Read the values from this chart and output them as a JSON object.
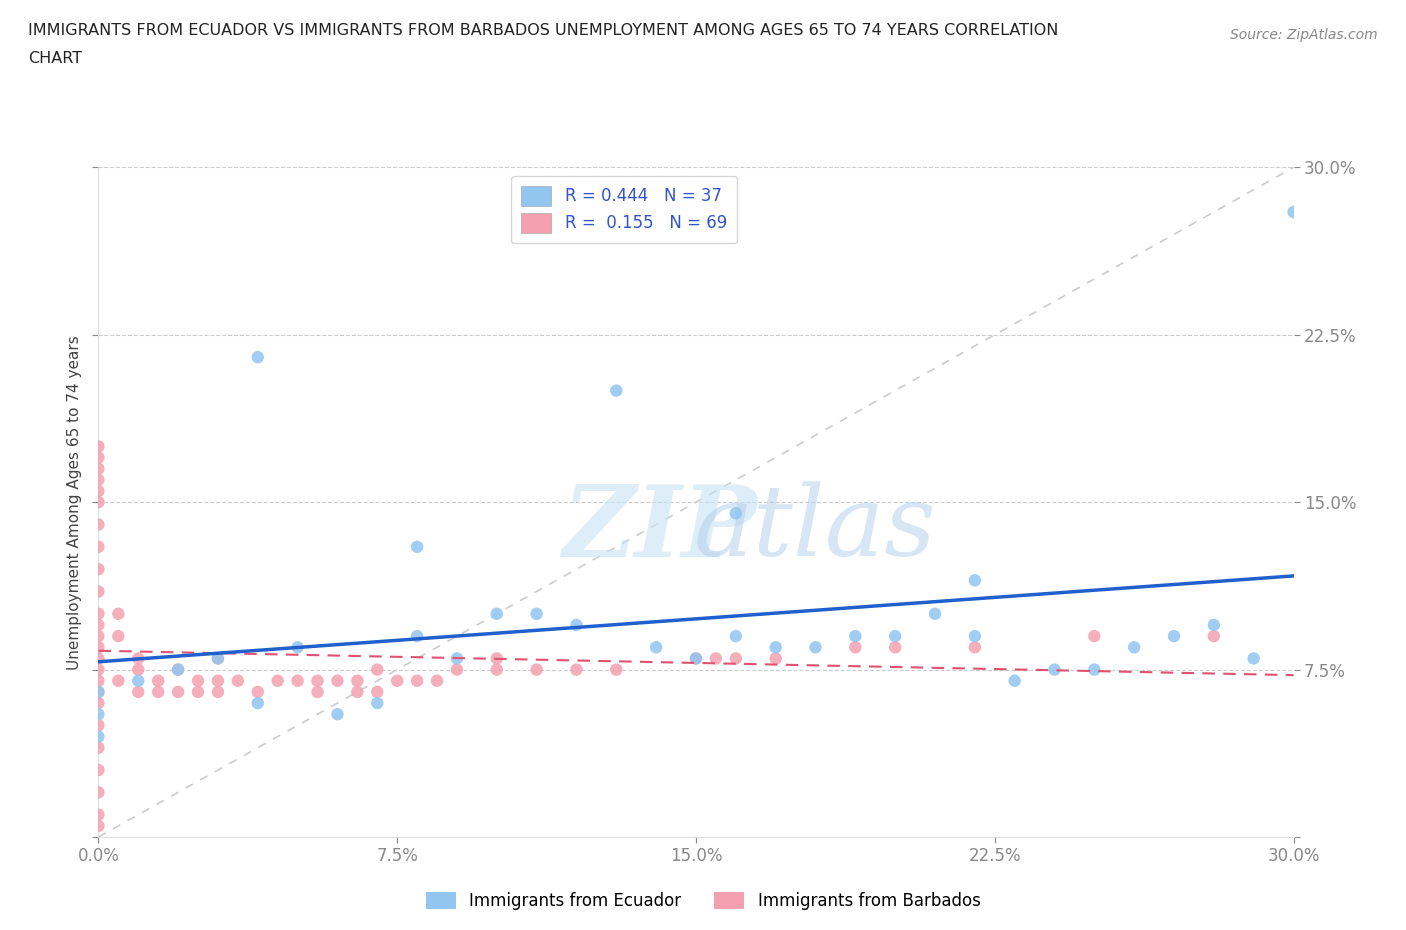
{
  "title_line1": "IMMIGRANTS FROM ECUADOR VS IMMIGRANTS FROM BARBADOS UNEMPLOYMENT AMONG AGES 65 TO 74 YEARS CORRELATION",
  "title_line2": "CHART",
  "source": "Source: ZipAtlas.com",
  "ylabel": "Unemployment Among Ages 65 to 74 years",
  "xlim": [
    0.0,
    0.3
  ],
  "ylim": [
    0.0,
    0.3
  ],
  "xtick_labels": [
    "0.0%",
    "7.5%",
    "15.0%",
    "22.5%",
    "30.0%"
  ],
  "xtick_vals": [
    0.0,
    0.075,
    0.15,
    0.225,
    0.3
  ],
  "ytick_labels": [
    "",
    "7.5%",
    "15.0%",
    "22.5%",
    "30.0%"
  ],
  "ytick_vals": [
    0.0,
    0.075,
    0.15,
    0.225,
    0.3
  ],
  "ecuador_color": "#92C5F0",
  "barbados_color": "#F4A0B0",
  "trendline_ecuador_color": "#2060CC",
  "trendline_barbados_color": "#E05070",
  "diag_line_color": "#CCCCCC",
  "R_ecuador": 0.444,
  "N_ecuador": 37,
  "R_barbados": 0.155,
  "N_barbados": 69,
  "ecuador_x": [
    0.0,
    0.0,
    0.0,
    0.01,
    0.02,
    0.03,
    0.04,
    0.05,
    0.06,
    0.07,
    0.08,
    0.09,
    0.1,
    0.11,
    0.12,
    0.13,
    0.14,
    0.15,
    0.16,
    0.17,
    0.18,
    0.19,
    0.2,
    0.21,
    0.22,
    0.23,
    0.24,
    0.25,
    0.26,
    0.27,
    0.28,
    0.29,
    0.3,
    0.16,
    0.22,
    0.08,
    0.04
  ],
  "ecuador_y": [
    0.065,
    0.055,
    0.045,
    0.07,
    0.075,
    0.08,
    0.06,
    0.085,
    0.055,
    0.06,
    0.09,
    0.08,
    0.1,
    0.1,
    0.095,
    0.2,
    0.085,
    0.08,
    0.09,
    0.085,
    0.085,
    0.09,
    0.09,
    0.1,
    0.09,
    0.07,
    0.075,
    0.075,
    0.085,
    0.09,
    0.095,
    0.08,
    0.28,
    0.145,
    0.115,
    0.13,
    0.215
  ],
  "barbados_x": [
    0.0,
    0.0,
    0.0,
    0.0,
    0.0,
    0.0,
    0.0,
    0.0,
    0.0,
    0.0,
    0.0,
    0.0,
    0.0,
    0.0,
    0.0,
    0.0,
    0.0,
    0.0,
    0.0,
    0.0,
    0.0,
    0.0,
    0.0,
    0.0,
    0.0,
    0.005,
    0.005,
    0.005,
    0.01,
    0.01,
    0.01,
    0.015,
    0.015,
    0.02,
    0.02,
    0.025,
    0.025,
    0.03,
    0.03,
    0.03,
    0.035,
    0.04,
    0.045,
    0.05,
    0.055,
    0.055,
    0.06,
    0.065,
    0.065,
    0.07,
    0.07,
    0.075,
    0.08,
    0.085,
    0.09,
    0.1,
    0.1,
    0.11,
    0.12,
    0.13,
    0.15,
    0.155,
    0.16,
    0.17,
    0.19,
    0.2,
    0.22,
    0.25,
    0.28
  ],
  "barbados_y": [
    0.005,
    0.01,
    0.02,
    0.03,
    0.04,
    0.05,
    0.06,
    0.065,
    0.07,
    0.075,
    0.08,
    0.085,
    0.09,
    0.095,
    0.1,
    0.11,
    0.12,
    0.13,
    0.14,
    0.15,
    0.155,
    0.16,
    0.165,
    0.17,
    0.175,
    0.07,
    0.09,
    0.1,
    0.065,
    0.075,
    0.08,
    0.065,
    0.07,
    0.065,
    0.075,
    0.065,
    0.07,
    0.065,
    0.07,
    0.08,
    0.07,
    0.065,
    0.07,
    0.07,
    0.065,
    0.07,
    0.07,
    0.065,
    0.07,
    0.065,
    0.075,
    0.07,
    0.07,
    0.07,
    0.075,
    0.075,
    0.08,
    0.075,
    0.075,
    0.075,
    0.08,
    0.08,
    0.08,
    0.08,
    0.085,
    0.085,
    0.085,
    0.09,
    0.09
  ]
}
